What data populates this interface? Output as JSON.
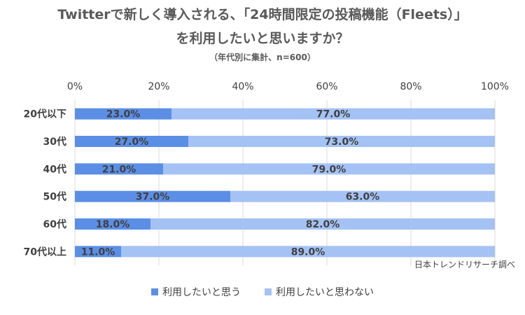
{
  "title_line1": "Twitterで新しく導入される、「24時間限定の投稿機能（Fleets）」",
  "title_line2": "を利用したいと思いますか？",
  "subtitle": "（年代別に集計、n=600）",
  "source": "日本トレンドリサーチ調べ",
  "colors": {
    "series1": "#5b8fe6",
    "series2": "#a4c2f4",
    "grid": "#d9d9d9",
    "text": "#404040"
  },
  "chart_data": {
    "type": "bar",
    "orientation": "horizontal",
    "stacked": "percent",
    "categories": [
      "20代以下",
      "30代",
      "40代",
      "50代",
      "60代",
      "70代以上"
    ],
    "series": [
      {
        "name": "利用したいと思う",
        "values": [
          23.0,
          27.0,
          21.0,
          37.0,
          18.0,
          11.0
        ],
        "labels": [
          "23.0%",
          "27.0%",
          "21.0%",
          "37.0%",
          "18.0%",
          "11.0%"
        ]
      },
      {
        "name": "利用したいと思わない",
        "values": [
          77.0,
          73.0,
          79.0,
          63.0,
          82.0,
          89.0
        ],
        "labels": [
          "77.0%",
          "73.0%",
          "79.0%",
          "63.0%",
          "82.0%",
          "89.0%"
        ]
      }
    ],
    "xlim": [
      0,
      100
    ],
    "xticks": [
      "0%",
      "20%",
      "40%",
      "60%",
      "80%",
      "100%"
    ],
    "xlabel": "",
    "ylabel": "",
    "grid": true,
    "legend_position": "bottom"
  }
}
